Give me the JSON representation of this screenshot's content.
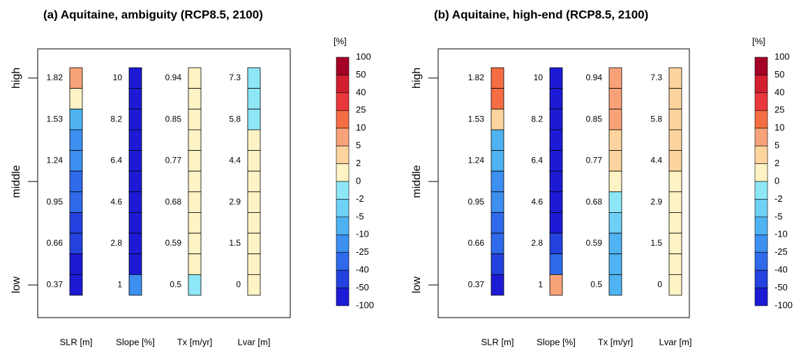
{
  "chart_data": [
    {
      "type": "heatmap",
      "title": "(a) Aquitaine, ambiguity (RCP8.5, 2100)",
      "yticks": [
        "low",
        "middle",
        "high"
      ],
      "columns": [
        {
          "name": "SLR [m]",
          "levels": [
            1.82,
            1.53,
            1.24,
            0.95,
            0.66,
            0.37
          ],
          "colors": [
            "#f8a27a",
            "#fdf3c4",
            "#4fb3f2",
            "#3d8ff0",
            "#3d8ff0",
            "#2f6aea",
            "#2f6aea",
            "#2442e0",
            "#2442e0",
            "#1d1ad6",
            "#1d1ad6"
          ]
        },
        {
          "name": "Slope [%]",
          "levels": [
            10,
            8.2,
            6.4,
            4.6,
            2.8,
            1
          ],
          "colors": [
            "#1d1ad6",
            "#1d1ad6",
            "#1d1ad6",
            "#1d1ad6",
            "#1d1ad6",
            "#1d1ad6",
            "#1d1ad6",
            "#1d1ad6",
            "#1d1ad6",
            "#1d1ad6",
            "#3d8ff0"
          ]
        },
        {
          "name": "Tx [m/yr]",
          "levels": [
            0.94,
            0.85,
            0.77,
            0.68,
            0.59,
            0.5
          ],
          "colors": [
            "#fdf3c4",
            "#fdf3c4",
            "#fdf3c4",
            "#fdf3c4",
            "#fdf3c4",
            "#fdf3c4",
            "#fdf3c4",
            "#fdf3c4",
            "#fdf3c4",
            "#fdf3c4",
            "#8ee7f7"
          ]
        },
        {
          "name": "Lvar [m]",
          "levels": [
            7.3,
            5.8,
            4.4,
            2.9,
            1.5,
            0
          ],
          "colors": [
            "#8ee7f7",
            "#8ee7f7",
            "#8ee7f7",
            "#fdf3c4",
            "#fdf3c4",
            "#fdf3c4",
            "#fdf3c4",
            "#fdf3c4",
            "#fdf3c4",
            "#fdf3c4",
            "#fdf3c4"
          ]
        }
      ],
      "colorbar": {
        "title": "[%]",
        "breaks": [
          100,
          50,
          40,
          25,
          10,
          5,
          2,
          0,
          -2,
          -5,
          -10,
          -25,
          -40,
          -50,
          -100
        ],
        "colors": [
          "#a50026",
          "#d21f2f",
          "#e8383c",
          "#f46d43",
          "#f8a27a",
          "#fdd49e",
          "#fdf3c4",
          "#8ee7f7",
          "#6fd0f5",
          "#4fb3f2",
          "#3d8ff0",
          "#2f6aea",
          "#2442e0",
          "#1d1ad6"
        ]
      }
    },
    {
      "type": "heatmap",
      "title": "(b) Aquitaine, high-end (RCP8.5, 2100)",
      "yticks": [
        "low",
        "middle",
        "high"
      ],
      "columns": [
        {
          "name": "SLR [m]",
          "levels": [
            1.82,
            1.53,
            1.24,
            0.95,
            0.66,
            0.37
          ],
          "colors": [
            "#f46d43",
            "#f46d43",
            "#fdd49e",
            "#4fb3f2",
            "#4fb3f2",
            "#3d8ff0",
            "#3d8ff0",
            "#2f6aea",
            "#2f6aea",
            "#2442e0",
            "#1d1ad6"
          ]
        },
        {
          "name": "Slope [%]",
          "levels": [
            10,
            8.2,
            6.4,
            4.6,
            2.8,
            1
          ],
          "colors": [
            "#1d1ad6",
            "#1d1ad6",
            "#1d1ad6",
            "#1d1ad6",
            "#1d1ad6",
            "#1d1ad6",
            "#1d1ad6",
            "#1d1ad6",
            "#2442e0",
            "#2f6aea",
            "#f8a27a"
          ]
        },
        {
          "name": "Tx [m/yr]",
          "levels": [
            0.94,
            0.85,
            0.77,
            0.68,
            0.59,
            0.5
          ],
          "colors": [
            "#f8a27a",
            "#f8a27a",
            "#f8a27a",
            "#fdd49e",
            "#fdd49e",
            "#fdf3c4",
            "#8ee7f7",
            "#6fd0f5",
            "#4fb3f2",
            "#4fb3f2",
            "#4fb3f2"
          ]
        },
        {
          "name": "Lvar [m]",
          "levels": [
            7.3,
            5.8,
            4.4,
            2.9,
            1.5,
            0
          ],
          "colors": [
            "#fdd49e",
            "#fdd49e",
            "#fdd49e",
            "#fdd49e",
            "#fdd49e",
            "#fdf3c4",
            "#fdf3c4",
            "#fdf3c4",
            "#fdf3c4",
            "#fdf3c4",
            "#fdf3c4"
          ]
        }
      ],
      "colorbar": {
        "title": "[%]",
        "breaks": [
          100,
          50,
          40,
          25,
          10,
          5,
          2,
          0,
          -2,
          -5,
          -10,
          -25,
          -40,
          -50,
          -100
        ],
        "colors": [
          "#a50026",
          "#d21f2f",
          "#e8383c",
          "#f46d43",
          "#f8a27a",
          "#fdd49e",
          "#fdf3c4",
          "#8ee7f7",
          "#6fd0f5",
          "#4fb3f2",
          "#3d8ff0",
          "#2f6aea",
          "#2442e0",
          "#1d1ad6"
        ]
      }
    }
  ]
}
